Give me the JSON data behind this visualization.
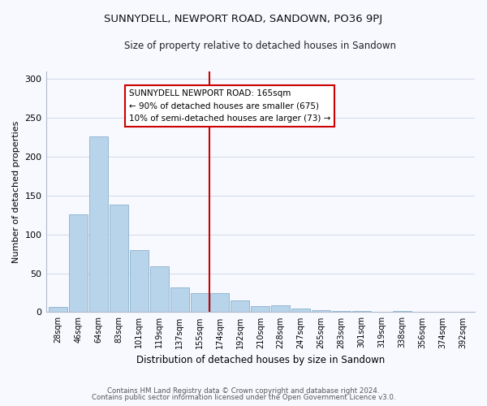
{
  "title": "SUNNYDELL, NEWPORT ROAD, SANDOWN, PO36 9PJ",
  "subtitle": "Size of property relative to detached houses in Sandown",
  "xlabel": "Distribution of detached houses by size in Sandown",
  "ylabel": "Number of detached properties",
  "bar_labels": [
    "28sqm",
    "46sqm",
    "64sqm",
    "83sqm",
    "101sqm",
    "119sqm",
    "137sqm",
    "155sqm",
    "174sqm",
    "192sqm",
    "210sqm",
    "228sqm",
    "247sqm",
    "265sqm",
    "283sqm",
    "301sqm",
    "319sqm",
    "338sqm",
    "356sqm",
    "374sqm",
    "392sqm"
  ],
  "bar_values": [
    7,
    126,
    226,
    138,
    80,
    59,
    32,
    25,
    25,
    15,
    8,
    9,
    5,
    3,
    2,
    1,
    0,
    1,
    0,
    0,
    0
  ],
  "bar_color": "#b8d4ea",
  "bar_edge_color": "#8ab0cc",
  "ref_line_index": 8,
  "reference_line_label": "SUNNYDELL NEWPORT ROAD: 165sqm",
  "annotation_line1": "← 90% of detached houses are smaller (675)",
  "annotation_line2": "10% of semi-detached houses are larger (73) →",
  "ylim_max": 310,
  "yticks": [
    0,
    50,
    100,
    150,
    200,
    250,
    300
  ],
  "footer_line1": "Contains HM Land Registry data © Crown copyright and database right 2024.",
  "footer_line2": "Contains public sector information licensed under the Open Government Licence v3.0.",
  "bg_color": "#f7f9ff",
  "grid_color": "#d0d8ea",
  "annotation_box_bg": "#ffffff",
  "annotation_box_edge": "#cc0000",
  "ref_line_color": "#cc0000",
  "spine_color": "#b0b8cc"
}
